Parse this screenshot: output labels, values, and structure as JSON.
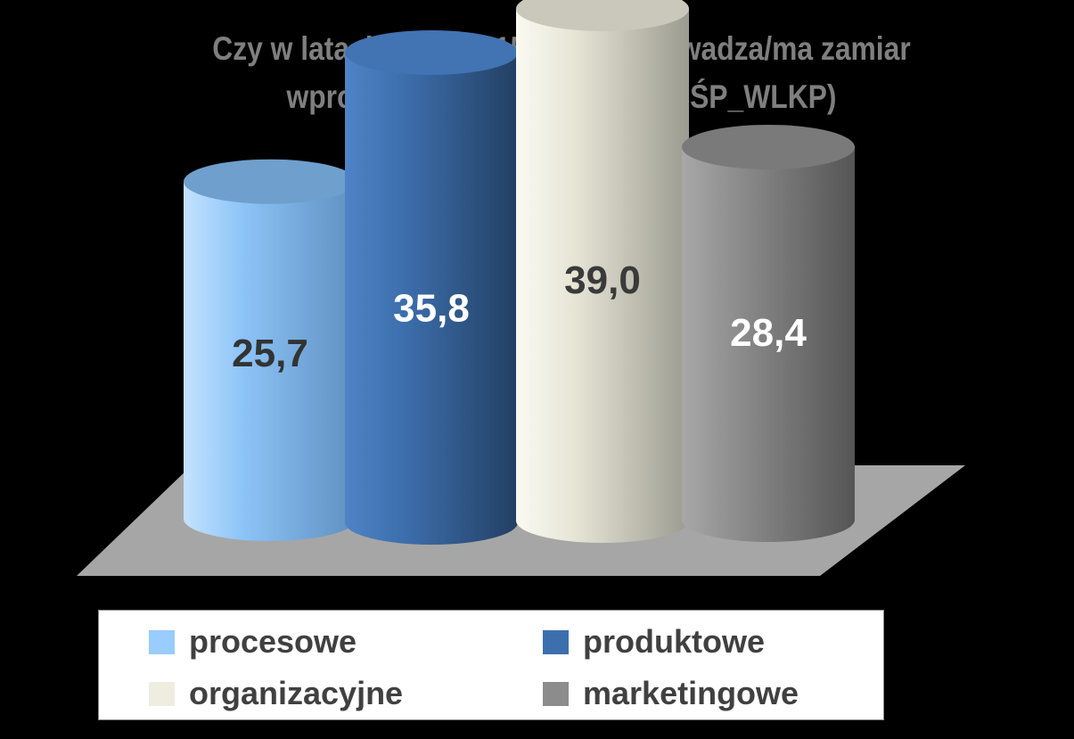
{
  "chart_data": {
    "type": "bar",
    "title_line1": "Czy w latach 2014-2015 firma wprowadza/ma zamiar",
    "title_line2": "wprowadzić innowacje (% MMŚP_WLKP)",
    "categories": [
      "procesowe",
      "produktowe",
      "organizacyjne",
      "marketingowe"
    ],
    "values": [
      25.7,
      35.8,
      39.0,
      28.4
    ],
    "value_labels": [
      "25,7",
      "35,8",
      "39,0",
      "28,4"
    ],
    "ylim": [
      0,
      45
    ],
    "legend_position": "bottom",
    "colors": {
      "procesowe": "#99ccff",
      "produktowe": "#3d6fae",
      "organizacyjne": "#eeede0",
      "marketingowe": "#8c8c8c"
    }
  }
}
